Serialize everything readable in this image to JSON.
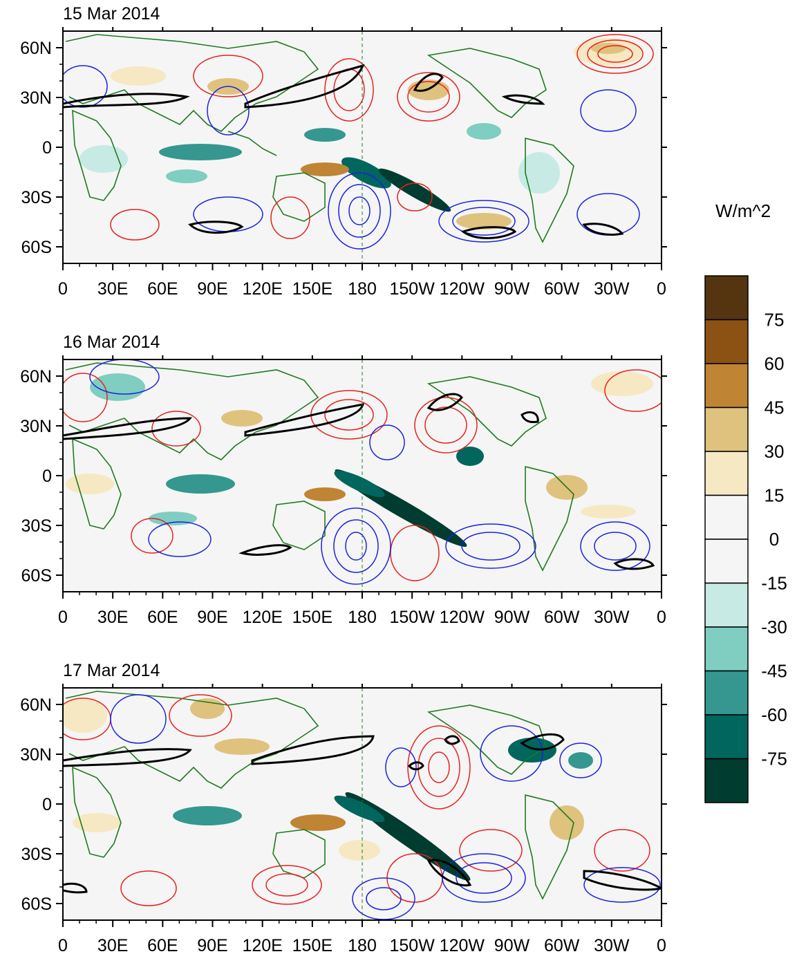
{
  "figure": {
    "panels": [
      {
        "title": "15 Mar 2014"
      },
      {
        "title": "16 Mar 2014"
      },
      {
        "title": "17 Mar 2014"
      }
    ],
    "x_tick_labels": [
      "0",
      "30E",
      "60E",
      "90E",
      "120E",
      "150E",
      "180",
      "150W",
      "120W",
      "90W",
      "60W",
      "30W",
      "0"
    ],
    "y_tick_labels": [
      "60N",
      "30N",
      "0",
      "30S",
      "60S"
    ],
    "y_tick_values": [
      60,
      30,
      0,
      -30,
      -60
    ],
    "lon_range": [
      0,
      360
    ],
    "lat_range": [
      -70,
      70
    ]
  },
  "colorbar": {
    "unit": "W/m^2",
    "labels": [
      "75",
      "60",
      "45",
      "30",
      "15",
      "0",
      "-15",
      "-30",
      "-45",
      "-60",
      "-75"
    ],
    "colors": [
      "#553410",
      "#8c5214",
      "#bf8434",
      "#dfc27d",
      "#f6e8c3",
      "#f5f5f5",
      "#f5f5f5",
      "#c7eae5",
      "#80cdc1",
      "#35978f",
      "#01665e",
      "#003c30"
    ]
  },
  "colors": {
    "positive_contour": "#e8201c",
    "negative_contour": "#1a22e0",
    "zero_contour": "#000000",
    "coastline": "#1e7a1e",
    "shade_positive": "#dfc27d",
    "shade_negative": "#35978f"
  }
}
